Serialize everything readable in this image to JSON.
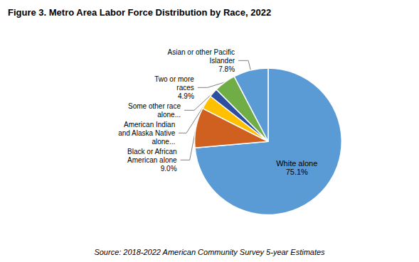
{
  "chart_data": {
    "type": "pie",
    "title": "Figure 3. Metro Area Labor Force Distribution by Race, 2022",
    "source": "Source: 2018-2022 American Community Survey 5-year Estimates",
    "categories": [
      "White alone\n75.1%",
      "Black or African\nAmerican alone\n9.0%",
      "American Indian\nand Alaska Native\nalone...",
      "Some other race\nalone...",
      "Two or more\nraces\n4.9%",
      "Asian or other Pacific\nIslander\n7.8%"
    ],
    "values": [
      75.1,
      9.0,
      3.2,
      2.0,
      4.9,
      7.8
    ],
    "colors": [
      "#5B9BD5",
      "#D06020",
      "#FFC000",
      "#2E4FA0",
      "#70AD47",
      "#5B9BD5"
    ]
  }
}
